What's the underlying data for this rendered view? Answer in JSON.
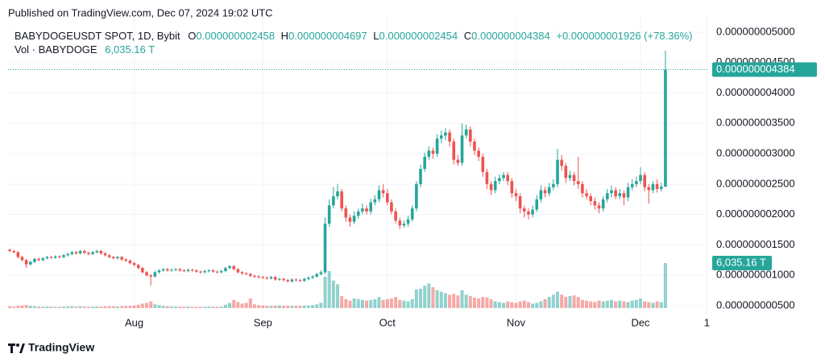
{
  "published": "Published on TradingView.com, Dec 07, 2024 19:02 UTC",
  "brand": "TradingView",
  "chart_data": {
    "type": "candlestick",
    "title": "BABYDOGEUSDT SPOT, 1D, Bybit",
    "ohlc_legend": [
      {
        "key": "O",
        "value": "0.000000002458"
      },
      {
        "key": "H",
        "value": "0.000000004697"
      },
      {
        "key": "L",
        "value": "0.000000002454"
      },
      {
        "key": "C",
        "value": "0.000000004384"
      }
    ],
    "change": "+0.000000001926 (+78.36%)",
    "last_price_label": "0.000000004384",
    "up_color": "#26a69a",
    "down_color": "#ef5350",
    "grid": true,
    "xlim": [
      -0.4,
      168.5
    ],
    "xticks": [
      {
        "value": 30,
        "label": "Aug"
      },
      {
        "value": 61,
        "label": "Sep"
      },
      {
        "value": 91,
        "label": "Oct"
      },
      {
        "value": 122,
        "label": "Nov"
      },
      {
        "value": 152,
        "label": "Dec"
      },
      {
        "value": 168,
        "label": "1"
      }
    ],
    "ylim": [
      3.41e-10,
      5.132e-09
    ],
    "yticks": [
      {
        "value": 5e-09,
        "label": "0.000000005000"
      },
      {
        "value": 4.5e-09,
        "label": "0.000000004500"
      },
      {
        "value": 4e-09,
        "label": "0.000000004000"
      },
      {
        "value": 3.5e-09,
        "label": "0.000000003500"
      },
      {
        "value": 3e-09,
        "label": "0.000000003000"
      },
      {
        "value": 2.5e-09,
        "label": "0.000000002500"
      },
      {
        "value": 2e-09,
        "label": "0.000000002000"
      },
      {
        "value": 1.5e-09,
        "label": "0.000000001500"
      },
      {
        "value": 1e-09,
        "label": "0.000000001000"
      },
      {
        "value": 5e-10,
        "label": "0.000000000500"
      }
    ],
    "open": [
      1.42e-09,
      1.4e-09,
      1.38e-09,
      1.3e-09,
      1.25e-09,
      1.18e-09,
      1.22e-09,
      1.27e-09,
      1.25e-09,
      1.28e-09,
      1.3e-09,
      1.29e-09,
      1.31e-09,
      1.3e-09,
      1.33e-09,
      1.35e-09,
      1.38e-09,
      1.36e-09,
      1.4e-09,
      1.37e-09,
      1.35e-09,
      1.38e-09,
      1.4e-09,
      1.36e-09,
      1.33e-09,
      1.3e-09,
      1.28e-09,
      1.3e-09,
      1.26e-09,
      1.24e-09,
      1.2e-09,
      1.17e-09,
      1.12e-09,
      1.05e-09,
      1e-09,
      9.8e-10,
      1.05e-09,
      1.08e-09,
      1.1e-09,
      1.08e-09,
      1.09e-09,
      1.1e-09,
      1.08e-09,
      1.07e-09,
      1.09e-09,
      1.08e-09,
      1.06e-09,
      1.05e-09,
      1.07e-09,
      1.08e-09,
      1.06e-09,
      1.05e-09,
      1.07e-09,
      1.12e-09,
      1.15e-09,
      1.1e-09,
      1.05e-09,
      1.03e-09,
      1.02e-09,
      9.9e-10,
      9.8e-10,
      9.7e-10,
      9.6e-10,
      9.5e-10,
      9.7e-10,
      9.3e-10,
      9.4e-10,
      9.2e-10,
      9e-10,
      9.3e-10,
      9.2e-10,
      9.1e-10,
      9.4e-10,
      9.6e-10,
      9.8e-10,
      1.02e-09,
      1.05e-09,
      1.85e-09,
      2.15e-09,
      2.3e-09,
      2.38e-09,
      2.1e-09,
      1.95e-09,
      1.88e-09,
      1.98e-09,
      2.05e-09,
      2.1e-09,
      2.05e-09,
      2.2e-09,
      2.25e-09,
      2.4e-09,
      2.35e-09,
      2.2e-09,
      2.05e-09,
      1.9e-09,
      1.82e-09,
      1.85e-09,
      1.92e-09,
      2.1e-09,
      2.5e-09,
      2.75e-09,
      2.95e-09,
      3.05e-09,
      3e-09,
      3.25e-09,
      3.3e-09,
      3.35e-09,
      3.2e-09,
      2.9e-09,
      2.85e-09,
      3.3e-09,
      3.4e-09,
      3.2e-09,
      3.05e-09,
      2.95e-09,
      2.7e-09,
      2.5e-09,
      2.4e-09,
      2.55e-09,
      2.6e-09,
      2.65e-09,
      2.55e-09,
      2.35e-09,
      2.3e-09,
      2.1e-09,
      2.05e-09,
      2e-09,
      2.08e-09,
      2.25e-09,
      2.4e-09,
      2.35e-09,
      2.45e-09,
      2.5e-09,
      2.9e-09,
      2.8e-09,
      2.6e-09,
      2.65e-09,
      2.55e-09,
      2.5e-09,
      2.35e-09,
      2.3e-09,
      2.22e-09,
      2.15e-09,
      2.1e-09,
      2.25e-09,
      2.35e-09,
      2.4e-09,
      2.3e-09,
      2.35e-09,
      2.28e-09,
      2.45e-09,
      2.5e-09,
      2.55e-09,
      2.65e-09,
      2.45e-09,
      2.4e-09,
      2.5e-09,
      2.42e-09,
      2.458e-09
    ],
    "high": [
      1.44e-09,
      1.42e-09,
      1.4e-09,
      1.32e-09,
      1.27e-09,
      1.24e-09,
      1.29e-09,
      1.29e-09,
      1.3e-09,
      1.32e-09,
      1.32e-09,
      1.33e-09,
      1.33e-09,
      1.35e-09,
      1.37e-09,
      1.4e-09,
      1.4e-09,
      1.42e-09,
      1.42e-09,
      1.39e-09,
      1.4e-09,
      1.42e-09,
      1.42e-09,
      1.38e-09,
      1.35e-09,
      1.32e-09,
      1.32e-09,
      1.32e-09,
      1.28e-09,
      1.26e-09,
      1.22e-09,
      1.19e-09,
      1.14e-09,
      1.07e-09,
      1.02e-09,
      1.07e-09,
      1.1e-09,
      1.12e-09,
      1.12e-09,
      1.11e-09,
      1.12e-09,
      1.12e-09,
      1.1e-09,
      1.11e-09,
      1.11e-09,
      1.1e-09,
      1.08e-09,
      1.09e-09,
      1.1e-09,
      1.1e-09,
      1.08e-09,
      1.09e-09,
      1.14e-09,
      1.17e-09,
      1.17e-09,
      1.12e-09,
      1.07e-09,
      1.05e-09,
      1.04e-09,
      1.01e-09,
      1e-09,
      9.9e-10,
      9.8e-10,
      9.9e-10,
      9.9e-10,
      9.6e-10,
      9.6e-10,
      9.4e-10,
      9.5e-10,
      9.5e-10,
      9.4e-10,
      9.6e-10,
      9.8e-10,
      1e-09,
      1.04e-09,
      1.08e-09,
      1.95e-09,
      2.25e-09,
      2.45e-09,
      2.5e-09,
      2.42e-09,
      2.15e-09,
      2e-09,
      2.05e-09,
      2.1e-09,
      2.18e-09,
      2.15e-09,
      2.26e-09,
      2.32e-09,
      2.48e-09,
      2.5e-09,
      2.42e-09,
      2.25e-09,
      2.1e-09,
      1.95e-09,
      1.9e-09,
      1.98e-09,
      2.15e-09,
      2.55e-09,
      2.82e-09,
      3.02e-09,
      3.12e-09,
      3.1e-09,
      3.32e-09,
      3.38e-09,
      3.42e-09,
      3.4e-09,
      3.25e-09,
      2.98e-09,
      3.5e-09,
      3.48e-09,
      3.45e-09,
      3.25e-09,
      3.1e-09,
      3e-09,
      2.75e-09,
      2.55e-09,
      2.62e-09,
      2.66e-09,
      2.7e-09,
      2.7e-09,
      2.6e-09,
      2.42e-09,
      2.35e-09,
      2.15e-09,
      2.1e-09,
      2.15e-09,
      2.32e-09,
      2.48e-09,
      2.46e-09,
      2.52e-09,
      2.58e-09,
      3.08e-09,
      2.98e-09,
      2.85e-09,
      2.72e-09,
      2.7e-09,
      2.95e-09,
      2.55e-09,
      2.42e-09,
      2.35e-09,
      2.28e-09,
      2.2e-09,
      2.3e-09,
      2.42e-09,
      2.48e-09,
      2.45e-09,
      2.42e-09,
      2.4e-09,
      2.52e-09,
      2.58e-09,
      2.62e-09,
      2.78e-09,
      2.7e-09,
      2.5e-09,
      2.55e-09,
      2.58e-09,
      2.52e-09,
      4.697e-09
    ],
    "low": [
      1.38e-09,
      1.36e-09,
      1.28e-09,
      1.23e-09,
      1.12e-09,
      1.16e-09,
      1.2e-09,
      1.23e-09,
      1.23e-09,
      1.26e-09,
      1.27e-09,
      1.27e-09,
      1.28e-09,
      1.28e-09,
      1.31e-09,
      1.33e-09,
      1.34e-09,
      1.34e-09,
      1.35e-09,
      1.33e-09,
      1.33e-09,
      1.36e-09,
      1.34e-09,
      1.31e-09,
      1.28e-09,
      1.26e-09,
      1.26e-09,
      1.24e-09,
      1.22e-09,
      1.18e-09,
      1.15e-09,
      1.1e-09,
      1.03e-09,
      9.8e-10,
      8.3e-10,
      9.6e-10,
      1.03e-09,
      1.06e-09,
      1.06e-09,
      1.06e-09,
      1.07e-09,
      1.06e-09,
      1.05e-09,
      1.05e-09,
      1.06e-09,
      1.04e-09,
      1.03e-09,
      1.03e-09,
      1.05e-09,
      1.04e-09,
      1.03e-09,
      1.03e-09,
      1.05e-09,
      1.1e-09,
      1.08e-09,
      1.03e-09,
      1.01e-09,
      1e-09,
      9.7e-10,
      9.6e-10,
      9.5e-10,
      9.4e-10,
      9.3e-10,
      9.3e-10,
      9.1e-10,
      9.1e-10,
      9e-10,
      8.8e-10,
      8.8e-10,
      9e-10,
      8.9e-10,
      8.9e-10,
      9.2e-10,
      9.4e-10,
      9.6e-10,
      1e-09,
      1.02e-09,
      1.8e-09,
      2.1e-09,
      2.25e-09,
      2.05e-09,
      1.88e-09,
      1.8e-09,
      1.84e-09,
      1.93e-09,
      2e-09,
      2e-09,
      2e-09,
      2.15e-09,
      2.2e-09,
      2.28e-09,
      2.15e-09,
      2e-09,
      1.85e-09,
      1.76e-09,
      1.78e-09,
      1.8e-09,
      1.88e-09,
      2.05e-09,
      2.45e-09,
      2.7e-09,
      2.9e-09,
      2.92e-09,
      2.95e-09,
      3.18e-09,
      3.22e-09,
      3.12e-09,
      2.82e-09,
      2.8e-09,
      2.8e-09,
      3.25e-09,
      3.12e-09,
      2.98e-09,
      2.88e-09,
      2.62e-09,
      2.42e-09,
      2.32e-09,
      2.35e-09,
      2.5e-09,
      2.55e-09,
      2.48e-09,
      2.28e-09,
      2.22e-09,
      2.02e-09,
      1.95e-09,
      1.92e-09,
      1.95e-09,
      2.04e-09,
      2.2e-09,
      2.28e-09,
      2.3e-09,
      2.4e-09,
      2.45e-09,
      2.72e-09,
      2.52e-09,
      2.55e-09,
      2.48e-09,
      2.42e-09,
      2.28e-09,
      2.25e-09,
      2.15e-09,
      2.08e-09,
      2.02e-09,
      2.05e-09,
      2.2e-09,
      2.28e-09,
      2.25e-09,
      2.25e-09,
      2.15e-09,
      2.22e-09,
      2.4e-09,
      2.45e-09,
      2.5e-09,
      2.38e-09,
      2.18e-09,
      2.35e-09,
      2.36e-09,
      2.38e-09,
      2.454e-09
    ],
    "close": [
      1.4e-09,
      1.38e-09,
      1.3e-09,
      1.25e-09,
      1.18e-09,
      1.22e-09,
      1.27e-09,
      1.25e-09,
      1.28e-09,
      1.3e-09,
      1.29e-09,
      1.31e-09,
      1.3e-09,
      1.33e-09,
      1.35e-09,
      1.38e-09,
      1.36e-09,
      1.4e-09,
      1.37e-09,
      1.35e-09,
      1.38e-09,
      1.4e-09,
      1.36e-09,
      1.33e-09,
      1.3e-09,
      1.28e-09,
      1.3e-09,
      1.26e-09,
      1.24e-09,
      1.2e-09,
      1.17e-09,
      1.12e-09,
      1.05e-09,
      1e-09,
      9.8e-10,
      1.05e-09,
      1.08e-09,
      1.1e-09,
      1.08e-09,
      1.09e-09,
      1.1e-09,
      1.08e-09,
      1.07e-09,
      1.09e-09,
      1.08e-09,
      1.06e-09,
      1.05e-09,
      1.07e-09,
      1.08e-09,
      1.06e-09,
      1.05e-09,
      1.07e-09,
      1.12e-09,
      1.15e-09,
      1.1e-09,
      1.05e-09,
      1.03e-09,
      1.02e-09,
      9.9e-10,
      9.8e-10,
      9.7e-10,
      9.6e-10,
      9.5e-10,
      9.7e-10,
      9.3e-10,
      9.4e-10,
      9.2e-10,
      9e-10,
      9.3e-10,
      9.2e-10,
      9.1e-10,
      9.4e-10,
      9.6e-10,
      9.8e-10,
      1.02e-09,
      1.05e-09,
      1.85e-09,
      2.15e-09,
      2.3e-09,
      2.38e-09,
      2.1e-09,
      1.95e-09,
      1.88e-09,
      1.98e-09,
      2.05e-09,
      2.1e-09,
      2.05e-09,
      2.2e-09,
      2.25e-09,
      2.4e-09,
      2.35e-09,
      2.2e-09,
      2.05e-09,
      1.9e-09,
      1.82e-09,
      1.85e-09,
      1.92e-09,
      2.1e-09,
      2.5e-09,
      2.75e-09,
      2.95e-09,
      3.05e-09,
      3e-09,
      3.25e-09,
      3.3e-09,
      3.35e-09,
      3.2e-09,
      2.9e-09,
      2.85e-09,
      3.3e-09,
      3.4e-09,
      3.2e-09,
      3.05e-09,
      2.95e-09,
      2.7e-09,
      2.5e-09,
      2.4e-09,
      2.55e-09,
      2.6e-09,
      2.65e-09,
      2.55e-09,
      2.35e-09,
      2.3e-09,
      2.1e-09,
      2.05e-09,
      2e-09,
      2.08e-09,
      2.25e-09,
      2.4e-09,
      2.35e-09,
      2.45e-09,
      2.5e-09,
      2.9e-09,
      2.8e-09,
      2.6e-09,
      2.65e-09,
      2.55e-09,
      2.5e-09,
      2.35e-09,
      2.3e-09,
      2.22e-09,
      2.15e-09,
      2.1e-09,
      2.25e-09,
      2.35e-09,
      2.4e-09,
      2.3e-09,
      2.35e-09,
      2.28e-09,
      2.45e-09,
      2.5e-09,
      2.55e-09,
      2.65e-09,
      2.45e-09,
      2.4e-09,
      2.5e-09,
      2.42e-09,
      2.458e-09,
      4.384e-09
    ],
    "volume": {
      "name": "Vol · BABYDOGE",
      "last_label": "6,035.16 T",
      "values": [
        250,
        200,
        300,
        350,
        400,
        300,
        250,
        200,
        180,
        200,
        190,
        170,
        160,
        200,
        220,
        250,
        200,
        230,
        210,
        190,
        200,
        220,
        200,
        230,
        250,
        240,
        220,
        260,
        280,
        300,
        350,
        450,
        600,
        700,
        900,
        500,
        400,
        300,
        250,
        220,
        200,
        190,
        180,
        200,
        170,
        160,
        180,
        170,
        200,
        190,
        180,
        200,
        450,
        700,
        1100,
        800,
        600,
        700,
        1300,
        500,
        400,
        350,
        300,
        280,
        320,
        350,
        300,
        330,
        280,
        300,
        290,
        320,
        350,
        400,
        500,
        700,
        4200,
        4950,
        3700,
        3200,
        1600,
        1200,
        1000,
        1300,
        1200,
        1100,
        1000,
        1100,
        1200,
        1500,
        1100,
        1200,
        1300,
        1500,
        1100,
        1000,
        900,
        1200,
        2500,
        2600,
        3000,
        3300,
        2800,
        2400,
        2200,
        2000,
        1800,
        1900,
        1700,
        2400,
        1800,
        1600,
        1400,
        1300,
        1500,
        1400,
        1200,
        900,
        800,
        700,
        900,
        800,
        700,
        900,
        1000,
        800,
        600,
        700,
        900,
        1200,
        1500,
        1800,
        2200,
        1800,
        1500,
        1600,
        1700,
        1500,
        1100,
        1000,
        900,
        800,
        1000,
        900,
        1000,
        1100,
        900,
        1000,
        900,
        800,
        1000,
        1100,
        1300,
        900,
        800,
        700,
        900,
        800,
        6035.16
      ]
    }
  }
}
